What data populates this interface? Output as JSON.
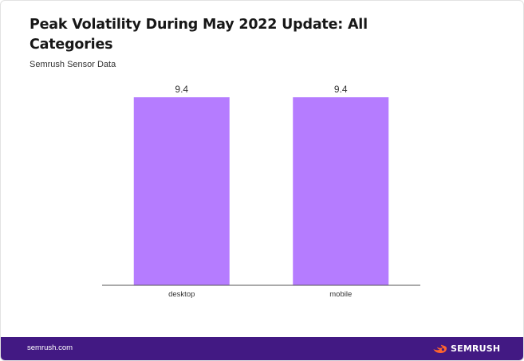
{
  "title": "Peak Volatility During May 2022 Update: All Categories",
  "subtitle": "Semrush Sensor Data",
  "footer": {
    "url": "semrush.com",
    "brand": "SEMRUSH",
    "brand_icon": "semrush-fire-logo-icon",
    "background_color": "#421983",
    "accent_color": "#ff642d"
  },
  "chart_data": {
    "type": "bar",
    "categories": [
      "desktop",
      "mobile"
    ],
    "values": [
      9.4,
      9.4
    ],
    "value_labels": [
      "9.4",
      "9.4"
    ],
    "ylim": [
      0,
      10
    ],
    "bar_color": "#b57cff",
    "grid": false,
    "legend": "none"
  }
}
